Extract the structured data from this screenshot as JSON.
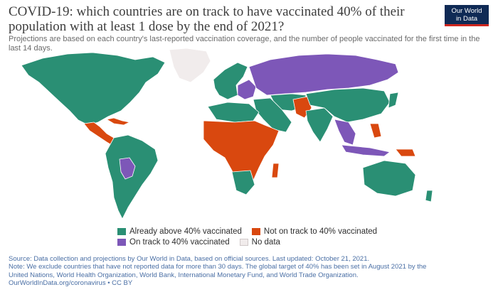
{
  "header": {
    "title": "COVID-19: which countries are on track to have vaccinated 40% of their population with at least 1 dose by the end of 2021?",
    "subtitle": "Projections are based on each country's last-reported vaccination coverage, and the number of people vaccinated for the first time in the last 14 days.",
    "logo_line1": "Our World",
    "logo_line2": "in Data"
  },
  "colors": {
    "above": "#2a8f74",
    "not_on_track": "#d9480f",
    "on_track": "#7d57b8",
    "no_data": "#f1ecec",
    "ocean": "#ffffff"
  },
  "legend": {
    "above_label": "Already above 40% vaccinated",
    "not_on_track_label": "Not on track to 40% vaccinated",
    "on_track_label": "On track to 40% vaccinated",
    "no_data_label": "No data"
  },
  "footer": {
    "source": "Source: Data collection and projections by Our World in Data, based on official sources. Last updated: October 21, 2021.",
    "note1": "Note: We exclude countries that have not reported data for more than 30 days. The global target of 40% has been set in August 2021 by the",
    "note2": "United Nations, World Health Organization, World Bank, International Monetary Fund, and World Trade Organization.",
    "url": "OurWorldInData.org/coronavirus • CC BY"
  },
  "map_regions": [
    {
      "name": "north-america",
      "status": "above"
    },
    {
      "name": "greenland",
      "status": "no_data"
    },
    {
      "name": "central-america",
      "status": "not_on_track"
    },
    {
      "name": "south-america",
      "status": "above"
    },
    {
      "name": "bolivia-paraguay",
      "status": "on_track"
    },
    {
      "name": "europe-west",
      "status": "above"
    },
    {
      "name": "eastern-europe",
      "status": "on_track"
    },
    {
      "name": "russia",
      "status": "on_track"
    },
    {
      "name": "central-asia",
      "status": "above"
    },
    {
      "name": "middle-east",
      "status": "above"
    },
    {
      "name": "afghanistan-pakistan",
      "status": "not_on_track"
    },
    {
      "name": "india",
      "status": "above"
    },
    {
      "name": "china",
      "status": "above"
    },
    {
      "name": "southeast-asia",
      "status": "on_track"
    },
    {
      "name": "north-africa",
      "status": "above"
    },
    {
      "name": "sub-saharan-africa",
      "status": "not_on_track"
    },
    {
      "name": "southern-africa",
      "status": "above"
    },
    {
      "name": "australia",
      "status": "above"
    }
  ]
}
